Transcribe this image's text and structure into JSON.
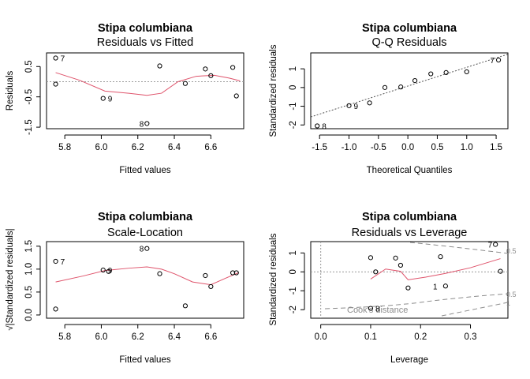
{
  "chart_data": [
    {
      "type": "scatter",
      "title": "Stipa columbiana",
      "subtitle": "Residuals vs Fitted",
      "xlabel": "Fitted values",
      "ylabel": "Residuals",
      "xlim": [
        5.7,
        6.78
      ],
      "ylim": [
        -1.55,
        0.95
      ],
      "xticks": [
        "5.8",
        "6.0",
        "6.2",
        "6.4",
        "6.6"
      ],
      "yticks": [
        "-1.5",
        "-0.5",
        "0.5"
      ],
      "reference_line": 0,
      "points": {
        "x": [
          5.75,
          5.75,
          6.01,
          6.25,
          6.32,
          6.46,
          6.57,
          6.6,
          6.72,
          6.74
        ],
        "y": [
          0.78,
          -0.08,
          -0.55,
          -1.38,
          0.52,
          -0.06,
          0.42,
          0.2,
          0.47,
          -0.47
        ]
      },
      "point_labels": [
        {
          "x": 5.75,
          "y": 0.78,
          "text": "7"
        },
        {
          "x": 6.01,
          "y": -0.55,
          "text": "9"
        },
        {
          "x": 6.25,
          "y": -1.38,
          "text": "8"
        }
      ],
      "smoother": {
        "x": [
          5.75,
          5.88,
          6.02,
          6.15,
          6.25,
          6.33,
          6.42,
          6.52,
          6.62,
          6.7,
          6.76
        ],
        "y": [
          0.3,
          0.05,
          -0.31,
          -0.38,
          -0.45,
          -0.38,
          0.0,
          0.18,
          0.21,
          0.12,
          0.03
        ]
      },
      "colors": {
        "smoother": "#DF536B",
        "reference": "#999999"
      }
    },
    {
      "type": "scatter",
      "title": "Stipa columbiana",
      "subtitle": "Q-Q Residuals",
      "xlabel": "Theoretical Quantiles",
      "ylabel": "Standardized residuals",
      "xlim": [
        -1.65,
        1.7
      ],
      "ylim": [
        -2.2,
        1.85
      ],
      "xticks": [
        "-1.5",
        "-1.0",
        "-0.5",
        "0.0",
        "0.5",
        "1.0",
        "1.5"
      ],
      "yticks": [
        "-2",
        "-1",
        "0",
        "1"
      ],
      "points": {
        "x": [
          -1.54,
          -1.0,
          -0.65,
          -0.39,
          -0.12,
          0.12,
          0.39,
          0.65,
          1.0,
          1.54
        ],
        "y": [
          -2.05,
          -0.97,
          -0.82,
          0.0,
          0.03,
          0.37,
          0.73,
          0.8,
          0.84,
          1.47
        ]
      },
      "point_labels": [
        {
          "x": -1.54,
          "y": -2.05,
          "text": "8"
        },
        {
          "x": -1.0,
          "y": -0.97,
          "text": "9"
        },
        {
          "x": 1.54,
          "y": 1.47,
          "text": "7"
        }
      ],
      "qq_line": {
        "intercept": 0.08,
        "slope": 1.0
      },
      "colors": {
        "qq_line": "#555555"
      }
    },
    {
      "type": "scatter",
      "title": "Stipa columbiana",
      "subtitle": "Scale-Location",
      "xlabel": "Fitted values",
      "ylabel": "√|Standardized residuals|",
      "xlim": [
        5.7,
        6.78
      ],
      "ylim": [
        -0.07,
        1.6
      ],
      "xticks": [
        "5.8",
        "6.0",
        "6.2",
        "6.4",
        "6.6"
      ],
      "yticks": [
        "0.0",
        "0.5",
        "1.0",
        "1.5"
      ],
      "points": {
        "x": [
          5.75,
          5.75,
          6.01,
          6.04,
          6.25,
          6.32,
          6.46,
          6.57,
          6.6,
          6.72,
          6.74
        ],
        "y": [
          1.17,
          0.13,
          0.98,
          0.95,
          1.45,
          0.9,
          0.2,
          0.86,
          0.62,
          0.92,
          0.92
        ]
      },
      "point_labels": [
        {
          "x": 5.75,
          "y": 1.17,
          "text": "7"
        },
        {
          "x": 6.01,
          "y": 0.98,
          "text": "9"
        },
        {
          "x": 6.25,
          "y": 1.45,
          "text": "8"
        }
      ],
      "smoother": {
        "x": [
          5.75,
          5.9,
          6.02,
          6.15,
          6.25,
          6.33,
          6.4,
          6.5,
          6.6,
          6.68,
          6.75
        ],
        "y": [
          0.72,
          0.85,
          0.97,
          1.02,
          1.05,
          1.0,
          0.9,
          0.72,
          0.66,
          0.8,
          0.92
        ]
      },
      "colors": {
        "smoother": "#DF536B"
      }
    },
    {
      "type": "scatter",
      "title": "Stipa columbiana",
      "subtitle": "Residuals vs Leverage",
      "xlabel": "Leverage",
      "ylabel": "Standardized residuals",
      "xlim": [
        -0.02,
        0.375
      ],
      "ylim": [
        -2.45,
        1.6
      ],
      "xticks": [
        "0.0",
        "0.1",
        "0.2",
        "0.3"
      ],
      "yticks": [
        "-2",
        "-1",
        "0",
        "1"
      ],
      "points": {
        "x": [
          0.1,
          0.1,
          0.11,
          0.15,
          0.16,
          0.175,
          0.24,
          0.25,
          0.35,
          0.36
        ],
        "y": [
          0.75,
          -1.93,
          0.0,
          0.73,
          0.35,
          -0.85,
          0.8,
          -0.75,
          1.45,
          0.03
        ]
      },
      "point_labels": [
        {
          "x": 0.1,
          "y": -1.93,
          "text": "8"
        },
        {
          "x": 0.24,
          "y": -0.75,
          "text": "1"
        },
        {
          "x": 0.35,
          "y": 1.45,
          "text": "7"
        }
      ],
      "smoother": {
        "x": [
          0.1,
          0.13,
          0.16,
          0.175,
          0.21,
          0.25,
          0.3,
          0.36
        ],
        "y": [
          -0.38,
          0.15,
          0.03,
          -0.42,
          -0.28,
          -0.08,
          0.22,
          0.7
        ]
      },
      "cooks_distance_label": "Cook's distance",
      "cooks_levels": [
        "0.5",
        "0.5",
        "1"
      ],
      "colors": {
        "smoother": "#DF536B",
        "cooks": "#8c8c8c"
      }
    }
  ]
}
